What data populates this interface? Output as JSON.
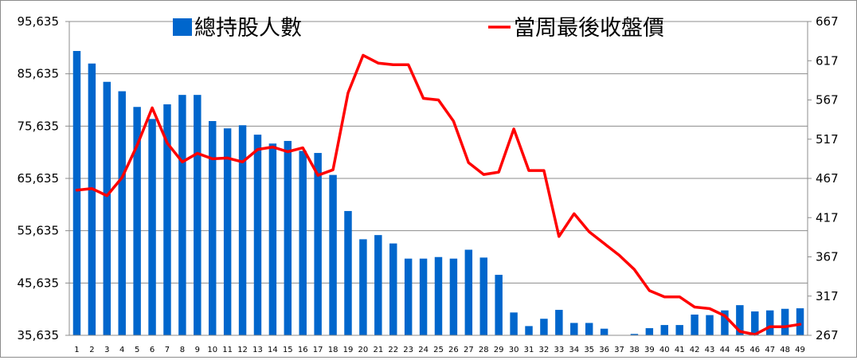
{
  "chart_data": {
    "type": "bar+line",
    "title": "",
    "categories": [
      "1",
      "2",
      "3",
      "4",
      "5",
      "6",
      "7",
      "8",
      "9",
      "10",
      "11",
      "12",
      "13",
      "14",
      "15",
      "16",
      "17",
      "18",
      "19",
      "20",
      "21",
      "22",
      "23",
      "24",
      "25",
      "26",
      "27",
      "28",
      "29",
      "30",
      "31",
      "32",
      "33",
      "34",
      "35",
      "36",
      "37",
      "38",
      "39",
      "40",
      "41",
      "42",
      "43",
      "44",
      "45",
      "46",
      "47",
      "48",
      "49"
    ],
    "series": [
      {
        "name": "總持股人數",
        "type": "bar",
        "axis": "left",
        "color": "#0066cc",
        "values": [
          90000,
          87600,
          84100,
          82300,
          79300,
          77000,
          79800,
          81600,
          81600,
          76600,
          75200,
          75800,
          74000,
          72300,
          72800,
          70900,
          70500,
          66300,
          59400,
          54000,
          54800,
          53200,
          50300,
          50300,
          50600,
          50300,
          52000,
          50500,
          47200,
          40000,
          37400,
          38800,
          40500,
          38000,
          38000,
          36900,
          35500,
          35900,
          37000,
          37600,
          37600,
          39600,
          39500,
          40400,
          41400,
          40200,
          40400,
          40700,
          40800
        ]
      },
      {
        "name": "當周最後收盤價",
        "type": "line",
        "axis": "right",
        "color": "#ff0000",
        "values": [
          452,
          454,
          445,
          468,
          509,
          557,
          512,
          488,
          499,
          492,
          493,
          488,
          504,
          507,
          501,
          506,
          471,
          478,
          576,
          624,
          614,
          612,
          612,
          569,
          567,
          540,
          487,
          472,
          475,
          530,
          477,
          477,
          393,
          422,
          399,
          384,
          369,
          351,
          324,
          316,
          316,
          303,
          301,
          292,
          272,
          268,
          278,
          278,
          281
        ]
      }
    ],
    "y_left": {
      "min": 35635,
      "max": 95635,
      "ticks": [
        "35,635",
        "45,635",
        "55,635",
        "65,635",
        "75,635",
        "85,635",
        "95,635"
      ]
    },
    "y_right": {
      "min": 267,
      "max": 667,
      "ticks": [
        "267",
        "317",
        "367",
        "417",
        "467",
        "517",
        "567",
        "617",
        "667"
      ]
    },
    "grid": "horizontal",
    "legend_position": "top"
  }
}
